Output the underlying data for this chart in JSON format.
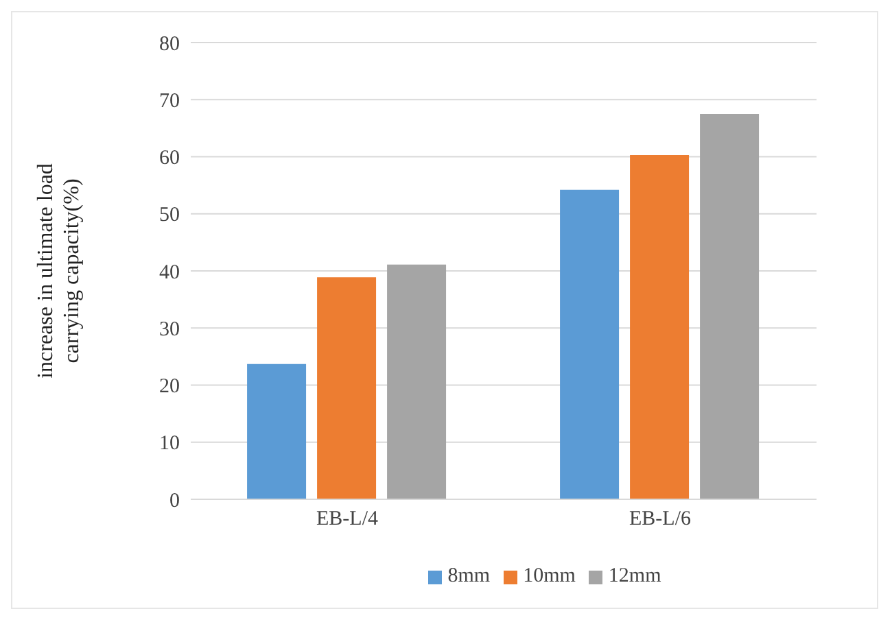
{
  "chart_data": {
    "type": "bar",
    "ylabel": "increase in ultimate load carrying capacity(%)",
    "categories": [
      "EB-L/4",
      "EB-L/6"
    ],
    "series": [
      {
        "name": "8mm",
        "color": "#5b9bd5",
        "values": [
          23.7,
          54.2
        ]
      },
      {
        "name": "10mm",
        "color": "#ed7d31",
        "values": [
          38.9,
          60.3
        ]
      },
      {
        "name": "12mm",
        "color": "#a5a5a5",
        "values": [
          41.1,
          67.5
        ]
      }
    ],
    "ylim": [
      0,
      80
    ],
    "yticks": [
      0,
      10,
      20,
      30,
      40,
      50,
      60,
      70,
      80
    ],
    "grid": "y",
    "legend": "bottom"
  }
}
